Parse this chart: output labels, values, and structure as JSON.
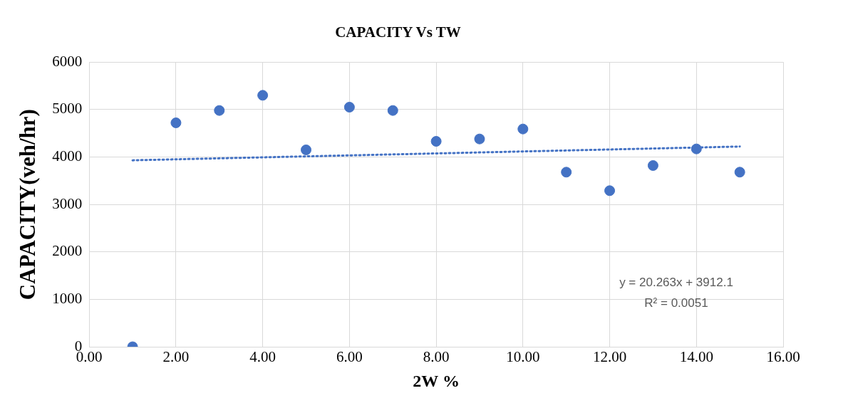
{
  "chart_data": {
    "type": "scatter",
    "title": "CAPACITY Vs TW",
    "xlabel": "2W %",
    "ylabel": "CAPACITY(veh/hr)",
    "series": [
      {
        "type": "scatter",
        "color": "#4472c4",
        "marker": "circle",
        "x": [
          1,
          2,
          3,
          4,
          5,
          6,
          7,
          8,
          9,
          10,
          11,
          12,
          13,
          14,
          15
        ],
        "values": [
          0,
          4720,
          4980,
          5300,
          4150,
          5050,
          4980,
          4330,
          4380,
          4590,
          3680,
          3290,
          3820,
          4170,
          3680
        ]
      },
      {
        "type": "line",
        "color": "#4472c4",
        "line_style": "dotted",
        "marker": "none",
        "x": [
          1,
          15
        ],
        "values": [
          3930,
          4220
        ]
      }
    ],
    "xlim": [
      0,
      16
    ],
    "xticks": [
      {
        "value": 0,
        "label": "0.00"
      },
      {
        "value": 2,
        "label": "2.00"
      },
      {
        "value": 4,
        "label": "4.00"
      },
      {
        "value": 6,
        "label": "6.00"
      },
      {
        "value": 8,
        "label": "8.00"
      },
      {
        "value": 10,
        "label": "10.00"
      },
      {
        "value": 12,
        "label": "12.00"
      },
      {
        "value": 14,
        "label": "14.00"
      },
      {
        "value": 16,
        "label": "16.00"
      }
    ],
    "ylim": [
      0,
      6000
    ],
    "yticks": [
      0,
      1000,
      2000,
      3000,
      4000,
      5000,
      6000
    ],
    "grid": true,
    "legend": false,
    "annotations": [
      "y = 20.263x + 3912.1",
      "R² = 0.0051"
    ]
  }
}
